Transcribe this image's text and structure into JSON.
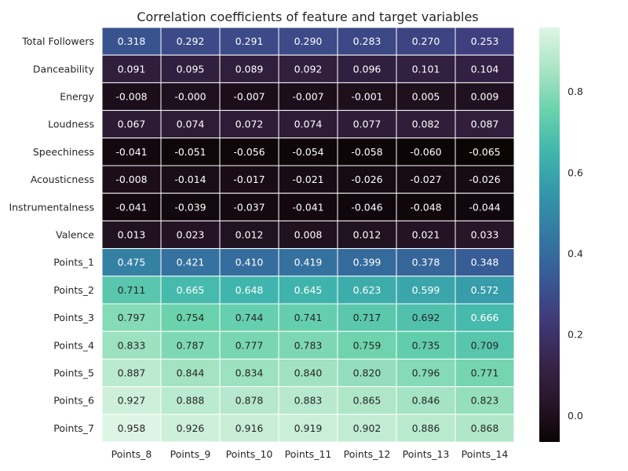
{
  "chart_data": {
    "type": "heatmap",
    "title": "Correlation coefficients of feature and target variables",
    "x_labels": [
      "Points_8",
      "Points_9",
      "Points_10",
      "Points_11",
      "Points_12",
      "Points_13",
      "Points_14"
    ],
    "y_labels": [
      "Total Followers",
      "Danceability",
      "Energy",
      "Loudness",
      "Speechiness",
      "Acousticness",
      "Instrumentalness",
      "Valence",
      "Points_1",
      "Points_2",
      "Points_3",
      "Points_4",
      "Points_5",
      "Points_6",
      "Points_7"
    ],
    "values": [
      [
        0.318,
        0.292,
        0.291,
        0.29,
        0.283,
        0.27,
        0.253
      ],
      [
        0.091,
        0.095,
        0.089,
        0.092,
        0.096,
        0.101,
        0.104
      ],
      [
        -0.008,
        -0.0,
        -0.007,
        -0.007,
        -0.001,
        0.005,
        0.009
      ],
      [
        0.067,
        0.074,
        0.072,
        0.074,
        0.077,
        0.082,
        0.087
      ],
      [
        -0.041,
        -0.051,
        -0.056,
        -0.054,
        -0.058,
        -0.06,
        -0.065
      ],
      [
        -0.008,
        -0.014,
        -0.017,
        -0.021,
        -0.026,
        -0.027,
        -0.026
      ],
      [
        -0.041,
        -0.039,
        -0.037,
        -0.041,
        -0.046,
        -0.048,
        -0.044
      ],
      [
        0.013,
        0.023,
        0.012,
        0.008,
        0.012,
        0.021,
        0.033
      ],
      [
        0.475,
        0.421,
        0.41,
        0.419,
        0.399,
        0.378,
        0.348
      ],
      [
        0.711,
        0.665,
        0.648,
        0.645,
        0.623,
        0.599,
        0.572
      ],
      [
        0.797,
        0.754,
        0.744,
        0.741,
        0.717,
        0.692,
        0.666
      ],
      [
        0.833,
        0.787,
        0.777,
        0.783,
        0.759,
        0.735,
        0.709
      ],
      [
        0.887,
        0.844,
        0.834,
        0.84,
        0.82,
        0.796,
        0.771
      ],
      [
        0.927,
        0.888,
        0.878,
        0.883,
        0.865,
        0.846,
        0.823
      ],
      [
        0.958,
        0.926,
        0.916,
        0.919,
        0.902,
        0.886,
        0.868
      ]
    ],
    "value_labels": [
      [
        "0.318",
        "0.292",
        "0.291",
        "0.290",
        "0.283",
        "0.270",
        "0.253"
      ],
      [
        "0.091",
        "0.095",
        "0.089",
        "0.092",
        "0.096",
        "0.101",
        "0.104"
      ],
      [
        "-0.008",
        "-0.000",
        "-0.007",
        "-0.007",
        "-0.001",
        "0.005",
        "0.009"
      ],
      [
        "0.067",
        "0.074",
        "0.072",
        "0.074",
        "0.077",
        "0.082",
        "0.087"
      ],
      [
        "-0.041",
        "-0.051",
        "-0.056",
        "-0.054",
        "-0.058",
        "-0.060",
        "-0.065"
      ],
      [
        "-0.008",
        "-0.014",
        "-0.017",
        "-0.021",
        "-0.026",
        "-0.027",
        "-0.026"
      ],
      [
        "-0.041",
        "-0.039",
        "-0.037",
        "-0.041",
        "-0.046",
        "-0.048",
        "-0.044"
      ],
      [
        "0.013",
        "0.023",
        "0.012",
        "0.008",
        "0.012",
        "0.021",
        "0.033"
      ],
      [
        "0.475",
        "0.421",
        "0.410",
        "0.419",
        "0.399",
        "0.378",
        "0.348"
      ],
      [
        "0.711",
        "0.665",
        "0.648",
        "0.645",
        "0.623",
        "0.599",
        "0.572"
      ],
      [
        "0.797",
        "0.754",
        "0.744",
        "0.741",
        "0.717",
        "0.692",
        "0.666"
      ],
      [
        "0.833",
        "0.787",
        "0.777",
        "0.783",
        "0.759",
        "0.735",
        "0.709"
      ],
      [
        "0.887",
        "0.844",
        "0.834",
        "0.840",
        "0.820",
        "0.796",
        "0.771"
      ],
      [
        "0.927",
        "0.888",
        "0.878",
        "0.883",
        "0.865",
        "0.846",
        "0.823"
      ],
      [
        "0.958",
        "0.926",
        "0.916",
        "0.919",
        "0.902",
        "0.886",
        "0.868"
      ]
    ],
    "colorbar": {
      "range": [
        -0.065,
        0.958
      ],
      "ticks": [
        0.0,
        0.2,
        0.4,
        0.6,
        0.8
      ],
      "tick_labels": [
        "0.0",
        "0.2",
        "0.4",
        "0.6",
        "0.8"
      ],
      "colormap": "mako"
    },
    "cell_border_color": "#ffffff",
    "annotation_colors": {
      "dark_text": "#262626",
      "light_text": "#ffffff"
    }
  }
}
